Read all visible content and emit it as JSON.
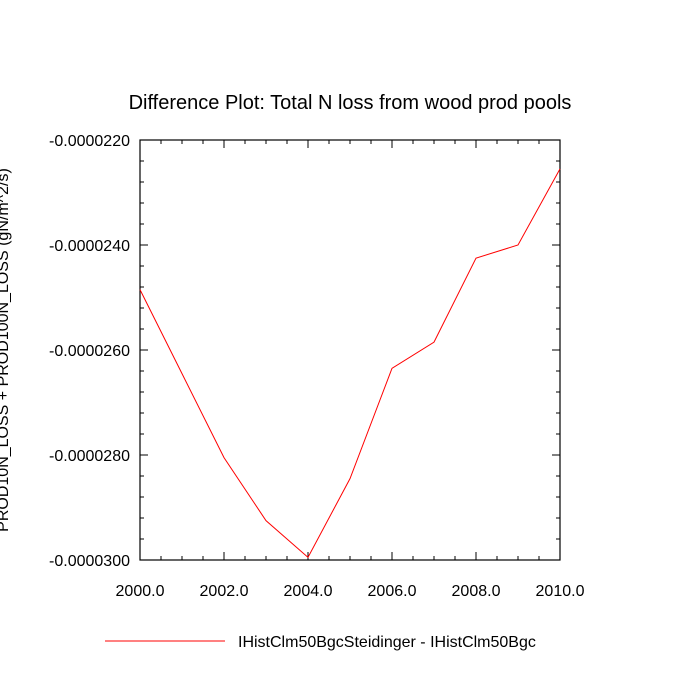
{
  "chart_data": {
    "type": "line",
    "title": "Difference Plot: Total N loss from wood prod pools",
    "ylabel": "PROD10N_LOSS + PROD100N_LOSS (gN/m^2/s)",
    "xlabel": "",
    "xlim": [
      2000.0,
      2010.0
    ],
    "ylim": [
      -3e-05,
      -2.2e-05
    ],
    "x_ticks": [
      "2000.0",
      "2002.0",
      "2004.0",
      "2006.0",
      "2008.0",
      "2010.0"
    ],
    "x_tick_values": [
      2000,
      2002,
      2004,
      2006,
      2008,
      2010
    ],
    "y_ticks": [
      "-0.0000220",
      "-0.0000240",
      "-0.0000260",
      "-0.0000280",
      "-0.0000300"
    ],
    "y_tick_values": [
      -2.2e-05,
      -2.4e-05,
      -2.6e-05,
      -2.8e-05,
      -3e-05
    ],
    "grid": false,
    "legend_position": "bottom",
    "series": [
      {
        "name": "IHistClm50BgcSteidinger - IHistClm50Bgc",
        "color": "#ff0000",
        "x": [
          2000,
          2001,
          2002,
          2003,
          2004,
          2005,
          2006,
          2007,
          2008,
          2009,
          2010
        ],
        "y": [
          -2.485e-05,
          -2.645e-05,
          -2.805e-05,
          -2.925e-05,
          -2.995e-05,
          -2.845e-05,
          -2.635e-05,
          -2.585e-05,
          -2.425e-05,
          -2.4e-05,
          -2.255e-05
        ]
      }
    ]
  }
}
